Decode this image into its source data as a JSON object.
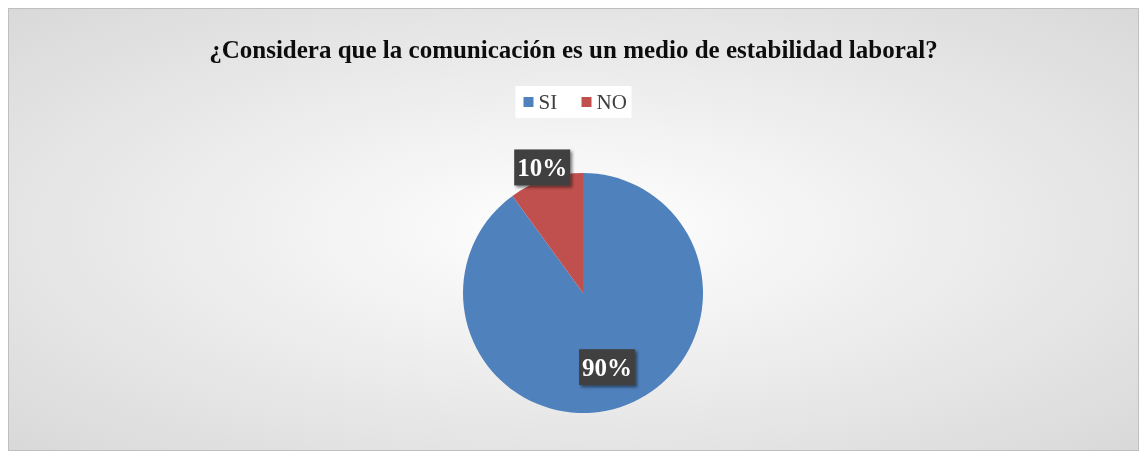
{
  "chart_data": {
    "type": "pie",
    "title": "¿Considera que la comunicación es un medio de estabilidad laboral?",
    "categories": [
      "SI",
      "NO"
    ],
    "values": [
      90,
      10
    ],
    "colors": [
      "#4f81bd",
      "#c0504d"
    ],
    "value_labels": [
      "90%",
      "10%"
    ],
    "legend": "top"
  }
}
